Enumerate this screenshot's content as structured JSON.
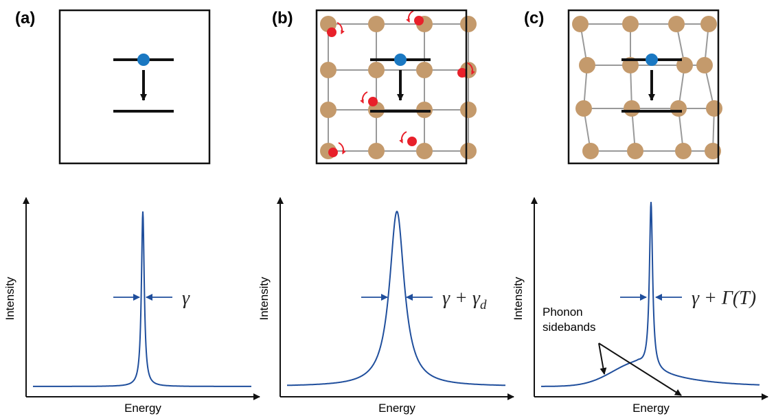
{
  "panels": [
    {
      "label": "(a)",
      "y_axis_label": "Intensity",
      "x_axis_label": "Energy",
      "linewidth_label": {
        "main": "γ"
      }
    },
    {
      "label": "(b)",
      "y_axis_label": "Intensity",
      "x_axis_label": "Energy",
      "linewidth_label": {
        "main": "γ + γ",
        "sub": "d"
      }
    },
    {
      "label": "(c)",
      "y_axis_label": "Intensity",
      "x_axis_label": "Energy",
      "linewidth_label": {
        "main": "γ + Γ(T)"
      }
    }
  ],
  "annotation": {
    "lines": [
      "Phonon",
      "sidebands"
    ]
  }
}
